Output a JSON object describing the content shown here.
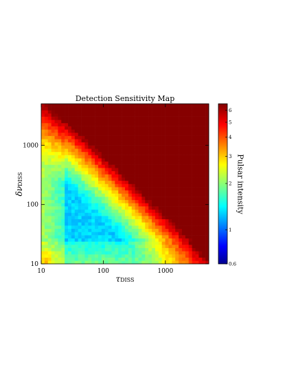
{
  "chart_data": {
    "type": "heatmap",
    "title": "Detection Sensitivity Map",
    "xlabel": {
      "main": "τ",
      "sub": "DISS"
    },
    "ylabel": {
      "main": "δν",
      "sub": "DISS"
    },
    "x_scale": "log",
    "y_scale": "log",
    "xlim": [
      10,
      5000
    ],
    "ylim": [
      10,
      5000
    ],
    "x_ticks": [
      10,
      100,
      1000
    ],
    "x_tick_labels": [
      "10",
      "100",
      "1000"
    ],
    "y_ticks": [
      10,
      100,
      1000
    ],
    "y_tick_labels": [
      "10",
      "100",
      "1000"
    ],
    "colorbar": {
      "label": "Pulsar intensity",
      "scale": "log",
      "range": [
        0.6,
        6.6
      ],
      "ticks": [
        0.6,
        1,
        2,
        3,
        4,
        5,
        6
      ],
      "tick_labels": [
        "0.6",
        "1",
        "2",
        "3",
        "4",
        "5",
        "6"
      ],
      "colormap": "jet"
    },
    "grid_size": [
      50,
      50
    ],
    "description_of_pattern": "Intensity lowest (~0.7-0.9) for τ between 25 and 200 and δν between 20 and 200; rises toward upper right reaching ~6 near τ=5000, δν=5000; strip below τ≈25 and δν≈25 is elevated (~1.3-1.8)."
  }
}
